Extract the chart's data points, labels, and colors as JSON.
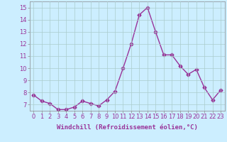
{
  "x": [
    0,
    1,
    2,
    3,
    4,
    5,
    6,
    7,
    8,
    9,
    10,
    11,
    12,
    13,
    14,
    15,
    16,
    17,
    18,
    19,
    20,
    21,
    22,
    23
  ],
  "y": [
    7.8,
    7.3,
    7.1,
    6.6,
    6.6,
    6.8,
    7.3,
    7.1,
    6.9,
    7.4,
    8.1,
    10.0,
    12.0,
    14.4,
    15.0,
    13.0,
    11.1,
    11.1,
    10.2,
    9.5,
    9.9,
    8.4,
    7.4,
    8.2
  ],
  "line_color": "#993399",
  "marker": "D",
  "marker_size": 2.5,
  "line_width": 1.0,
  "bg_color": "#cceeff",
  "grid_color": "#aacccc",
  "xlabel": "Windchill (Refroidissement éolien,°C)",
  "xlabel_fontsize": 6.5,
  "tick_fontsize": 6.0,
  "ylim": [
    6.5,
    15.5
  ],
  "yticks": [
    7,
    8,
    9,
    10,
    11,
    12,
    13,
    14,
    15
  ],
  "xtick_labels": [
    "0",
    "1",
    "2",
    "3",
    "4",
    "5",
    "6",
    "7",
    "8",
    "9",
    "10",
    "11",
    "12",
    "13",
    "14",
    "15",
    "16",
    "17",
    "18",
    "19",
    "20",
    "21",
    "22",
    "23"
  ]
}
